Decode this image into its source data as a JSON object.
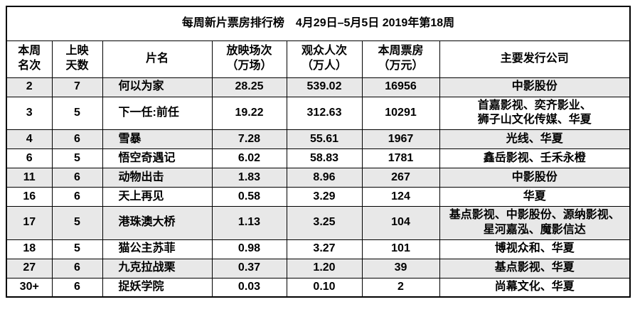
{
  "page": {
    "background": "#ffffff",
    "border_color": "#000000",
    "zebra_row_color": "#e8e8e8",
    "text_color": "#000000"
  },
  "chart_data": {
    "type": "table",
    "title": "每周新片票房排行榜　4月29日–5月5日 2019年第18周",
    "layout": {
      "zebra_striping": true,
      "first_data_row_shaded": true,
      "grid": "full black borders"
    },
    "columns": [
      {
        "id": "rank",
        "label": "本周\n名次"
      },
      {
        "id": "days",
        "label": "上映\n天数"
      },
      {
        "id": "film",
        "label": "片名"
      },
      {
        "id": "screenings",
        "label": "放映场次\n（万场）"
      },
      {
        "id": "admissions",
        "label": "观众人次\n（万人）"
      },
      {
        "id": "box_office",
        "label": "本周票房\n（万元）"
      },
      {
        "id": "distributors",
        "label": "主要发行公司"
      }
    ],
    "rows": [
      {
        "rank": "2",
        "days": "7",
        "film": "何以为家",
        "screenings": "28.25",
        "admissions": "539.02",
        "box_office": "16956",
        "distributors": "中影股份"
      },
      {
        "rank": "3",
        "days": "5",
        "film": "下一任:前任",
        "screenings": "19.22",
        "admissions": "312.63",
        "box_office": "10291",
        "distributors": "首嘉影视、奕齐影业、\n狮子山文化传媒、华夏"
      },
      {
        "rank": "4",
        "days": "6",
        "film": "雪暴",
        "screenings": "7.28",
        "admissions": "55.61",
        "box_office": "1967",
        "distributors": "光线、华夏"
      },
      {
        "rank": "6",
        "days": "5",
        "film": "悟空奇遇记",
        "screenings": "6.02",
        "admissions": "58.83",
        "box_office": "1781",
        "distributors": "鑫岳影视、壬禾永橙"
      },
      {
        "rank": "11",
        "days": "6",
        "film": "动物出击",
        "screenings": "1.83",
        "admissions": "8.96",
        "box_office": "267",
        "distributors": "中影股份"
      },
      {
        "rank": "16",
        "days": "6",
        "film": "天上再见",
        "screenings": "0.58",
        "admissions": "3.29",
        "box_office": "124",
        "distributors": "华夏"
      },
      {
        "rank": "17",
        "days": "5",
        "film": "港珠澳大桥",
        "screenings": "1.13",
        "admissions": "3.25",
        "box_office": "104",
        "distributors": "基点影视、中影股份、源纳影视、\n星河嘉泓、魔影信达"
      },
      {
        "rank": "18",
        "days": "5",
        "film": "猫公主苏菲",
        "screenings": "0.98",
        "admissions": "3.27",
        "box_office": "101",
        "distributors": "博视众和、华夏"
      },
      {
        "rank": "27",
        "days": "6",
        "film": "九克拉战栗",
        "screenings": "0.37",
        "admissions": "1.20",
        "box_office": "39",
        "distributors": "基点影视、华夏"
      },
      {
        "rank": "30+",
        "days": "6",
        "film": "捉妖学院",
        "screenings": "0.03",
        "admissions": "0.10",
        "box_office": "2",
        "distributors": "尚幕文化、华夏"
      }
    ]
  }
}
